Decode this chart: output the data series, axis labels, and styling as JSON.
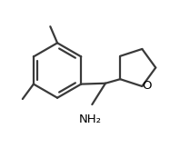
{
  "background_color": "#ffffff",
  "line_color": "#3a3a3a",
  "text_color": "#000000",
  "line_width": 1.6,
  "font_size": 9.5,
  "figsize": [
    2.09,
    1.74
  ],
  "dpi": 100,
  "xlim": [
    0.0,
    1.05
  ],
  "ylim": [
    0.0,
    1.0
  ]
}
